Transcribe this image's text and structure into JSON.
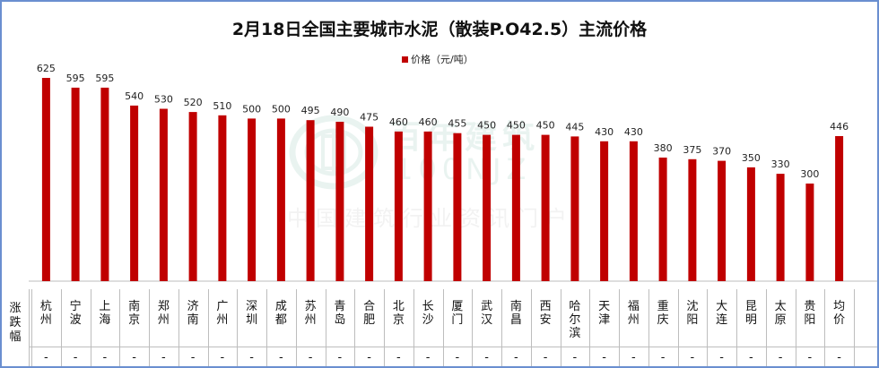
{
  "chart_data": {
    "type": "bar",
    "title": "2月18日全国主要城市水泥（散装P.O42.5）主流价格",
    "legend": {
      "label": "价格（元/吨）",
      "position": "top-center"
    },
    "categories": [
      "杭州",
      "宁波",
      "上海",
      "南京",
      "郑州",
      "济南",
      "广州",
      "深圳",
      "成都",
      "苏州",
      "青岛",
      "合肥",
      "北京",
      "长沙",
      "厦门",
      "武汉",
      "南昌",
      "西安",
      "哈尔滨",
      "天津",
      "福州",
      "重庆",
      "沈阳",
      "大连",
      "昆明",
      "太原",
      "贵阳",
      "均价"
    ],
    "series": [
      {
        "name": "价格（元/吨）",
        "color": "#c00000",
        "values": [
          625,
          595,
          595,
          540,
          530,
          520,
          510,
          500,
          500,
          495,
          490,
          475,
          460,
          460,
          455,
          450,
          450,
          450,
          445,
          430,
          430,
          380,
          375,
          370,
          350,
          330,
          300,
          446
        ]
      }
    ],
    "ylim": [
      0,
      650
    ],
    "grid": false,
    "table": {
      "row_header": "涨跌幅",
      "changes": [
        "-",
        "-",
        "-",
        "-",
        "-",
        "-",
        "-",
        "-",
        "-",
        "-",
        "-",
        "-",
        "-",
        "-",
        "-",
        "-",
        "-",
        "-",
        "-",
        "-",
        "-",
        "-",
        "-",
        "-",
        "-",
        "-",
        "-",
        "-"
      ]
    }
  },
  "watermark": {
    "brand": "百年建筑",
    "code": "100NJZ",
    "tagline": "中国建筑行业资讯门户"
  }
}
